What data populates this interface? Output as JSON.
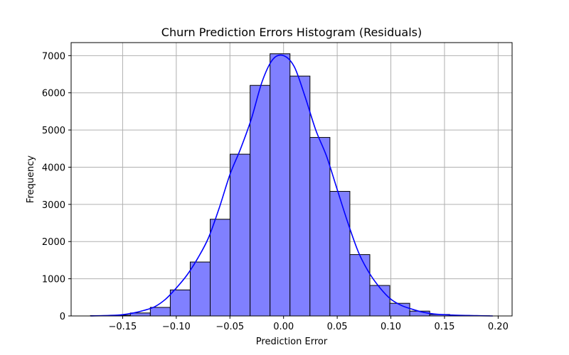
{
  "chart_data": {
    "type": "bar",
    "title": "Churn Prediction Errors Histogram (Residuals)",
    "xlabel": "Prediction Error",
    "ylabel": "Frequency",
    "xlim": [
      -0.198,
      0.213
    ],
    "ylim": [
      0,
      7350
    ],
    "xticks": [
      -0.15,
      -0.1,
      -0.05,
      0.0,
      0.05,
      0.1,
      0.15,
      0.2
    ],
    "xtick_labels": [
      "−0.15",
      "−0.10",
      "−0.05",
      "0.00",
      "0.05",
      "0.10",
      "0.15",
      "0.20"
    ],
    "yticks": [
      0,
      1000,
      2000,
      3000,
      4000,
      5000,
      6000,
      7000
    ],
    "ytick_labels": [
      "0",
      "1000",
      "2000",
      "3000",
      "4000",
      "5000",
      "6000",
      "7000"
    ],
    "grid": true,
    "bin_edges": [
      -0.18,
      -0.1614,
      -0.1428,
      -0.1242,
      -0.1056,
      -0.087,
      -0.0684,
      -0.0498,
      -0.0312,
      -0.0126,
      0.006,
      0.0246,
      0.0432,
      0.0618,
      0.0804,
      0.099,
      0.1176,
      0.1362,
      0.1548,
      0.1734,
      0.192
    ],
    "values": [
      10,
      20,
      80,
      230,
      700,
      1450,
      2600,
      4350,
      6200,
      7050,
      6450,
      4800,
      3350,
      1650,
      820,
      340,
      130,
      40,
      15,
      5
    ],
    "kde": {
      "x": [
        -0.18,
        -0.16,
        -0.15,
        -0.14,
        -0.13,
        -0.12,
        -0.11,
        -0.1,
        -0.09,
        -0.08,
        -0.07,
        -0.06,
        -0.05,
        -0.04,
        -0.03,
        -0.02,
        -0.01,
        0.0,
        0.01,
        0.02,
        0.03,
        0.04,
        0.05,
        0.06,
        0.07,
        0.08,
        0.09,
        0.1,
        0.11,
        0.12,
        0.13,
        0.14,
        0.16,
        0.18,
        0.195
      ],
      "y": [
        0,
        15,
        35,
        80,
        150,
        250,
        450,
        750,
        1100,
        1550,
        2100,
        2900,
        3800,
        4500,
        5300,
        6300,
        6900,
        7000,
        6700,
        5900,
        5000,
        4300,
        3400,
        2500,
        1700,
        1150,
        750,
        450,
        280,
        180,
        100,
        55,
        20,
        8,
        0
      ]
    },
    "bar_color": "#8080ff",
    "bar_edge_color": "#000000",
    "kde_color": "#0000ff",
    "grid_color": "#b0b0b0"
  }
}
